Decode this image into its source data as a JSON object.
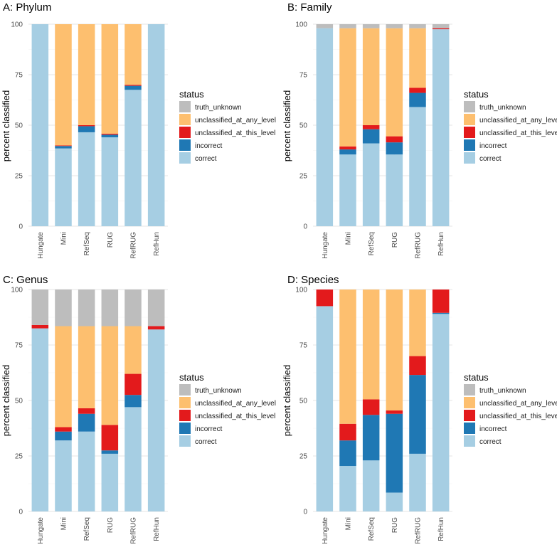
{
  "legend": {
    "title": "status",
    "items": [
      {
        "key": "truth_unknown",
        "label": "truth_unknown",
        "color": "#BDBDBD"
      },
      {
        "key": "unclassified_at_any_level",
        "label": "unclassified_at_any_level",
        "color": "#FDBF6F"
      },
      {
        "key": "unclassified_at_this_level",
        "label": "unclassified_at_this_level",
        "color": "#E31A1C"
      },
      {
        "key": "incorrect",
        "label": "incorrect",
        "color": "#1F78B4"
      },
      {
        "key": "correct",
        "label": "correct",
        "color": "#A6CEE3"
      }
    ]
  },
  "chart_data": [
    {
      "type": "bar",
      "stacked": true,
      "title": "A: Phylum",
      "ylabel": "percent classified",
      "ylim": [
        0,
        100
      ],
      "yticks": [
        0,
        25,
        50,
        75,
        100
      ],
      "grid": true,
      "legend_position": "right",
      "categories": [
        "Hungate",
        "Mini",
        "RefSeq",
        "RUG",
        "RefRUG",
        "RefHun"
      ],
      "series": [
        {
          "name": "correct",
          "values": [
            100,
            38.5,
            46.5,
            44,
            67.5,
            100
          ]
        },
        {
          "name": "incorrect",
          "values": [
            0,
            1.2,
            3.0,
            1.3,
            2.0,
            0
          ]
        },
        {
          "name": "unclassified_at_this_level",
          "values": [
            0,
            0.3,
            0.5,
            0.5,
            0.5,
            0
          ]
        },
        {
          "name": "unclassified_at_any_level",
          "values": [
            0,
            60,
            50,
            54.2,
            30,
            0
          ]
        },
        {
          "name": "truth_unknown",
          "values": [
            0,
            0,
            0,
            0,
            0,
            0
          ]
        }
      ]
    },
    {
      "type": "bar",
      "stacked": true,
      "title": "B: Family",
      "ylabel": "percent classified",
      "ylim": [
        0,
        100
      ],
      "yticks": [
        0,
        25,
        50,
        75,
        100
      ],
      "grid": true,
      "legend_position": "right",
      "categories": [
        "Hungate",
        "Mini",
        "RefSeq",
        "RUG",
        "RefRUG",
        "RefHun"
      ],
      "series": [
        {
          "name": "correct",
          "values": [
            98,
            35.5,
            41,
            35.5,
            59,
            97.5
          ]
        },
        {
          "name": "incorrect",
          "values": [
            0,
            2.5,
            7,
            6,
            7,
            0
          ]
        },
        {
          "name": "unclassified_at_this_level",
          "values": [
            0,
            1.5,
            2,
            3,
            2.5,
            0.5
          ]
        },
        {
          "name": "unclassified_at_any_level",
          "values": [
            0,
            58.5,
            48,
            53.5,
            29.5,
            0
          ]
        },
        {
          "name": "truth_unknown",
          "values": [
            2,
            2,
            2,
            2,
            2,
            2
          ]
        }
      ]
    },
    {
      "type": "bar",
      "stacked": true,
      "title": "C: Genus",
      "ylabel": "percent classified",
      "ylim": [
        0,
        100
      ],
      "yticks": [
        0,
        25,
        50,
        75,
        100
      ],
      "grid": true,
      "legend_position": "right",
      "categories": [
        "Hungate",
        "Mini",
        "RefSeq",
        "RUG",
        "RefRUG",
        "RefHun"
      ],
      "series": [
        {
          "name": "correct",
          "values": [
            82.5,
            32,
            36,
            26,
            47,
            82
          ]
        },
        {
          "name": "incorrect",
          "values": [
            0,
            4,
            8,
            1.5,
            5.5,
            0
          ]
        },
        {
          "name": "unclassified_at_this_level",
          "values": [
            1.5,
            2,
            2.5,
            11.5,
            9.5,
            1.5
          ]
        },
        {
          "name": "unclassified_at_any_level",
          "values": [
            0,
            45.5,
            37,
            44.5,
            21.5,
            0
          ]
        },
        {
          "name": "truth_unknown",
          "values": [
            16,
            16.5,
            16.5,
            16.5,
            16.5,
            16.5
          ]
        }
      ]
    },
    {
      "type": "bar",
      "stacked": true,
      "title": "D: Species",
      "ylabel": "percent classified",
      "ylim": [
        0,
        100
      ],
      "yticks": [
        0,
        25,
        50,
        75,
        100
      ],
      "grid": true,
      "legend_position": "right",
      "categories": [
        "Hungate",
        "Mini",
        "RefSeq",
        "RUG",
        "RefRUG",
        "RefHun"
      ],
      "series": [
        {
          "name": "correct",
          "values": [
            92.5,
            20.5,
            23,
            8.5,
            26,
            89
          ]
        },
        {
          "name": "incorrect",
          "values": [
            0,
            11.5,
            20.5,
            35.5,
            35.5,
            0.5
          ]
        },
        {
          "name": "unclassified_at_this_level",
          "values": [
            7.5,
            7.5,
            7,
            1.5,
            8.5,
            10.5
          ]
        },
        {
          "name": "unclassified_at_any_level",
          "values": [
            0,
            60.5,
            49.5,
            54.5,
            30,
            0
          ]
        },
        {
          "name": "truth_unknown",
          "values": [
            0,
            0,
            0,
            0,
            0,
            0
          ]
        }
      ]
    }
  ]
}
